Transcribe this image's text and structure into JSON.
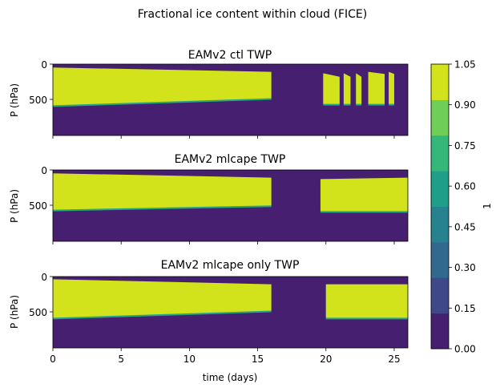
{
  "title": "Fractional ice content within cloud (FICE)",
  "colors": {
    "background": "#461f70",
    "fill": "#d2e21b",
    "edge": "#22a785",
    "levels": [
      "#461f70",
      "#3f4989",
      "#31688e",
      "#26828e",
      "#1f9e89",
      "#35b779",
      "#6ece58",
      "#d2e21b"
    ]
  },
  "chart_data": [
    {
      "type": "heatmap",
      "title": "EAMv2 ctl TWP",
      "xlabel": "",
      "ylabel": "P (hPa)",
      "xlim": [
        0,
        26
      ],
      "ylim": [
        1000,
        0
      ],
      "yticks": [
        "0",
        "500"
      ],
      "xticks": [
        "0",
        "5",
        "10",
        "15",
        "20",
        "25"
      ],
      "show_xticklabels": false,
      "cloud_regions": [
        {
          "t": [
            0,
            16
          ],
          "p_top": [
            70,
            130
          ],
          "p_base": [
            600,
            500
          ]
        },
        {
          "t": [
            19.8,
            21
          ],
          "p_top": [
            150,
            200
          ],
          "p_base": [
            580,
            580
          ]
        },
        {
          "t": [
            21.3,
            21.8
          ],
          "p_top": [
            150,
            200
          ],
          "p_base": [
            580,
            580
          ]
        },
        {
          "t": [
            22.2,
            22.6
          ],
          "p_top": [
            150,
            200
          ],
          "p_base": [
            580,
            580
          ]
        },
        {
          "t": [
            23.1,
            24.3
          ],
          "p_top": [
            130,
            160
          ],
          "p_base": [
            580,
            580
          ]
        },
        {
          "t": [
            24.6,
            25.0
          ],
          "p_top": [
            130,
            160
          ],
          "p_base": [
            580,
            580
          ]
        }
      ]
    },
    {
      "type": "heatmap",
      "title": "EAMv2 mlcape TWP",
      "xlabel": "",
      "ylabel": "P (hPa)",
      "xlim": [
        0,
        26
      ],
      "ylim": [
        1000,
        0
      ],
      "yticks": [
        "0",
        "500"
      ],
      "xticks": [
        "0",
        "5",
        "10",
        "15",
        "20",
        "25"
      ],
      "show_xticklabels": false,
      "cloud_regions": [
        {
          "t": [
            0,
            16
          ],
          "p_top": [
            70,
            130
          ],
          "p_base": [
            580,
            520
          ]
        },
        {
          "t": [
            19.6,
            26
          ],
          "p_top": [
            150,
            130
          ],
          "p_base": [
            600,
            600
          ]
        }
      ]
    },
    {
      "type": "heatmap",
      "title": "EAMv2 mlcape only TWP",
      "xlabel": "time (days)",
      "ylabel": "P (hPa)",
      "xlim": [
        0,
        26
      ],
      "ylim": [
        1000,
        0
      ],
      "yticks": [
        "0",
        "500"
      ],
      "xticks": [
        "0",
        "5",
        "10",
        "15",
        "20",
        "25"
      ],
      "show_xticklabels": true,
      "cloud_regions": [
        {
          "t": [
            0,
            16
          ],
          "p_top": [
            60,
            130
          ],
          "p_base": [
            600,
            500
          ]
        },
        {
          "t": [
            20,
            26
          ],
          "p_top": [
            130,
            130
          ],
          "p_base": [
            600,
            600
          ]
        }
      ]
    }
  ],
  "colorbar": {
    "label": "1",
    "ticks": [
      "1.05",
      "0.90",
      "0.75",
      "0.60",
      "0.45",
      "0.30",
      "0.15",
      "0.00"
    ]
  }
}
